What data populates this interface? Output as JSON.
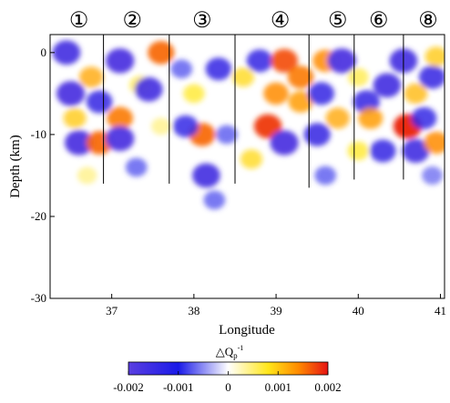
{
  "chart_data": {
    "type": "heatmap",
    "title": "",
    "xlabel": "Longitude",
    "ylabel": "Depth (km)",
    "xlim": [
      36.25,
      41.05
    ],
    "ylim": [
      -30,
      2.2
    ],
    "xticks": [
      37,
      38,
      39,
      40,
      41
    ],
    "xtick_labels": [
      "37",
      "38",
      "39",
      "40",
      "41"
    ],
    "yticks": [
      0,
      -10,
      -20,
      -30
    ],
    "ytick_labels": [
      "0",
      "-10",
      "-20",
      "-30"
    ],
    "colorbar": {
      "label": "△Q",
      "label_subscript": "p",
      "label_superscript": "-1",
      "range": [
        -0.002,
        0.002
      ],
      "ticks": [
        -0.002,
        -0.001,
        0,
        0.001,
        0.002
      ],
      "tick_labels": [
        "-0.002",
        "-0.001",
        "0",
        "0.001",
        "0.002"
      ],
      "colors": [
        "#5a3fe0",
        "#1a1ae8",
        "#ffffff",
        "#ffe61a",
        "#ff8c00",
        "#e61414"
      ]
    },
    "zone_boundaries": [
      {
        "lon": 36.9,
        "depth_bottom": -16
      },
      {
        "lon": 37.7,
        "depth_bottom": -16
      },
      {
        "lon": 38.5,
        "depth_bottom": -16
      },
      {
        "lon": 39.4,
        "depth_bottom": -16.5
      },
      {
        "lon": 39.95,
        "depth_bottom": -15.5
      },
      {
        "lon": 40.55,
        "depth_bottom": -15.5
      }
    ],
    "zone_labels": [
      {
        "text": "①",
        "lon": 36.6
      },
      {
        "text": "②",
        "lon": 37.25
      },
      {
        "text": "③",
        "lon": 38.1
      },
      {
        "text": "④",
        "lon": 39.05
      },
      {
        "text": "⑤",
        "lon": 39.75
      },
      {
        "text": "⑥",
        "lon": 40.25
      },
      {
        "text": "⑧",
        "lon": 40.85
      }
    ],
    "anomalies": [
      {
        "lon": 36.45,
        "depth": 0,
        "value": -0.0018
      },
      {
        "lon": 36.5,
        "depth": -5,
        "value": -0.0019
      },
      {
        "lon": 36.75,
        "depth": -3,
        "value": 0.0012
      },
      {
        "lon": 36.55,
        "depth": -8,
        "value": 0.001
      },
      {
        "lon": 36.85,
        "depth": -6,
        "value": -0.0015
      },
      {
        "lon": 36.6,
        "depth": -11,
        "value": -0.0019
      },
      {
        "lon": 36.85,
        "depth": -11,
        "value": 0.0016
      },
      {
        "lon": 36.7,
        "depth": -15,
        "value": 0.0005
      },
      {
        "lon": 37.1,
        "depth": -1,
        "value": -0.0019
      },
      {
        "lon": 37.35,
        "depth": -4,
        "value": 0.0008
      },
      {
        "lon": 37.45,
        "depth": -4.5,
        "value": -0.0018
      },
      {
        "lon": 37.6,
        "depth": 0,
        "value": 0.0016
      },
      {
        "lon": 37.1,
        "depth": -8,
        "value": 0.0015
      },
      {
        "lon": 37.1,
        "depth": -10.5,
        "value": -0.0019
      },
      {
        "lon": 37.3,
        "depth": -14,
        "value": -0.0008
      },
      {
        "lon": 37.6,
        "depth": -9,
        "value": 0.0005
      },
      {
        "lon": 37.85,
        "depth": -2,
        "value": -0.0008
      },
      {
        "lon": 38.0,
        "depth": -5,
        "value": 0.0008
      },
      {
        "lon": 38.3,
        "depth": -2,
        "value": -0.0015
      },
      {
        "lon": 38.1,
        "depth": -10,
        "value": 0.0016
      },
      {
        "lon": 37.9,
        "depth": -9,
        "value": -0.0014
      },
      {
        "lon": 38.4,
        "depth": -10,
        "value": -0.0008
      },
      {
        "lon": 38.15,
        "depth": -15,
        "value": -0.0018
      },
      {
        "lon": 38.25,
        "depth": -18,
        "value": -0.0008
      },
      {
        "lon": 38.6,
        "depth": -3,
        "value": 0.0009
      },
      {
        "lon": 38.8,
        "depth": -1,
        "value": -0.0015
      },
      {
        "lon": 38.9,
        "depth": -9,
        "value": 0.0018
      },
      {
        "lon": 39.0,
        "depth": -5,
        "value": 0.0014
      },
      {
        "lon": 39.1,
        "depth": -1,
        "value": 0.0017
      },
      {
        "lon": 39.1,
        "depth": -11,
        "value": -0.0019
      },
      {
        "lon": 38.7,
        "depth": -13,
        "value": 0.0009
      },
      {
        "lon": 39.3,
        "depth": -6,
        "value": 0.0013
      },
      {
        "lon": 39.3,
        "depth": -3,
        "value": 0.0015
      },
      {
        "lon": 39.6,
        "depth": -1,
        "value": 0.0014
      },
      {
        "lon": 39.8,
        "depth": -1,
        "value": -0.0019
      },
      {
        "lon": 39.55,
        "depth": -5,
        "value": -0.0015
      },
      {
        "lon": 39.5,
        "depth": -10,
        "value": -0.0016
      },
      {
        "lon": 39.75,
        "depth": -8,
        "value": 0.0012
      },
      {
        "lon": 39.6,
        "depth": -15,
        "value": -0.0008
      },
      {
        "lon": 40.0,
        "depth": -3,
        "value": 0.0007
      },
      {
        "lon": 40.35,
        "depth": -4,
        "value": -0.0018
      },
      {
        "lon": 40.1,
        "depth": -6,
        "value": -0.0016
      },
      {
        "lon": 40.15,
        "depth": -8,
        "value": 0.0013
      },
      {
        "lon": 40.3,
        "depth": -12,
        "value": -0.0015
      },
      {
        "lon": 40.0,
        "depth": -12,
        "value": 0.0008
      },
      {
        "lon": 40.55,
        "depth": -1,
        "value": -0.0018
      },
      {
        "lon": 40.7,
        "depth": -5,
        "value": 0.0011
      },
      {
        "lon": 40.9,
        "depth": -3,
        "value": -0.0016
      },
      {
        "lon": 40.6,
        "depth": -9,
        "value": 0.0019
      },
      {
        "lon": 40.8,
        "depth": -8,
        "value": -0.0014
      },
      {
        "lon": 40.7,
        "depth": -12,
        "value": -0.0017
      },
      {
        "lon": 40.95,
        "depth": -11,
        "value": 0.0014
      },
      {
        "lon": 40.95,
        "depth": -0.5,
        "value": 0.001
      },
      {
        "lon": 40.9,
        "depth": -15,
        "value": -0.0007
      }
    ]
  }
}
